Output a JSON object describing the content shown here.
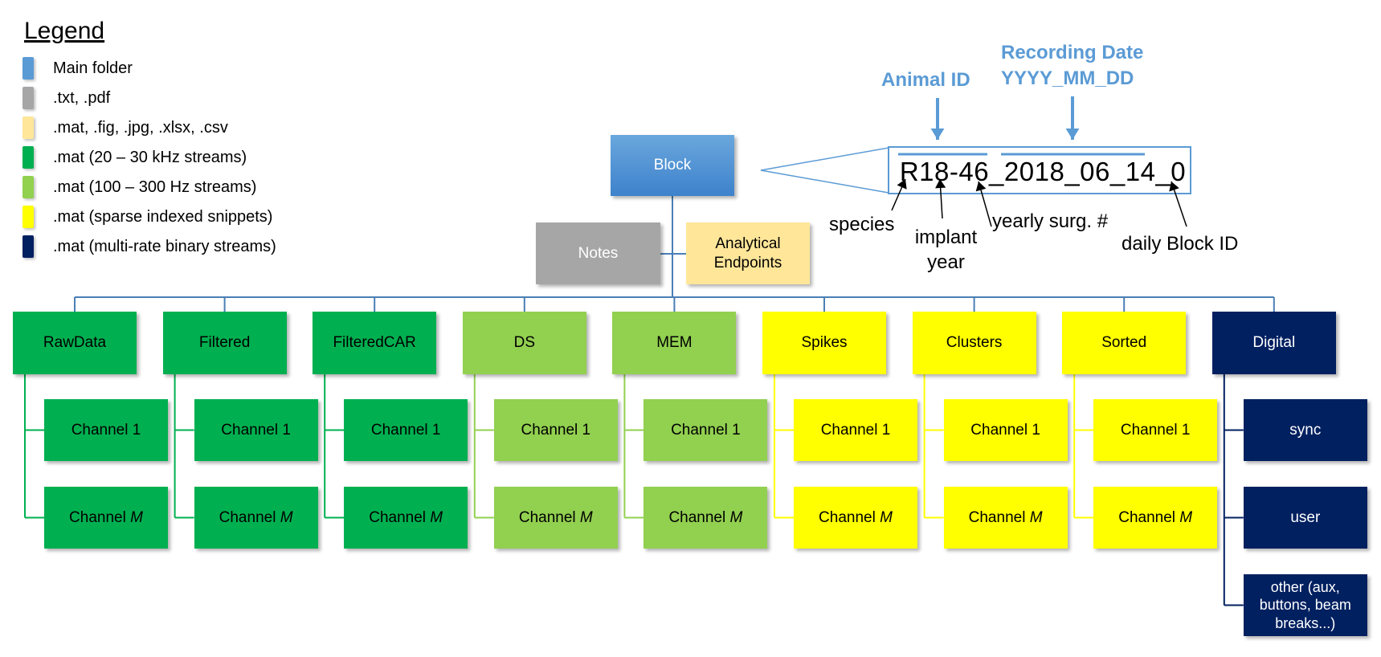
{
  "legend": {
    "title": "Legend",
    "items": [
      {
        "label": "Main folder",
        "color": "#5b9bd5"
      },
      {
        "label": ".txt, .pdf",
        "color": "#a6a6a6"
      },
      {
        "label": ".mat, .fig, .jpg, .xlsx, .csv",
        "color": "#ffe699"
      },
      {
        "label": ".mat (20 – 30 kHz streams)",
        "color": "#00b050"
      },
      {
        "label": ".mat (100 – 300 Hz streams)",
        "color": "#92d050"
      },
      {
        "label": ".mat (sparse indexed snippets)",
        "color": "#ffff00"
      },
      {
        "label": ".mat (multi-rate binary streams)",
        "color": "#002060"
      }
    ]
  },
  "root": {
    "label": "Block"
  },
  "notes": {
    "label": "Notes"
  },
  "endpoints": {
    "label": "Analytical Endpoints"
  },
  "folders": [
    {
      "label": "RawData",
      "kind": "dg",
      "children": [
        "Channel 1",
        "Channel M"
      ]
    },
    {
      "label": "Filtered",
      "kind": "dg",
      "children": [
        "Channel 1",
        "Channel M"
      ]
    },
    {
      "label": "FilteredCAR",
      "kind": "dg",
      "children": [
        "Channel 1",
        "Channel M"
      ]
    },
    {
      "label": "DS",
      "kind": "lg",
      "children": [
        "Channel 1",
        "Channel M"
      ]
    },
    {
      "label": "MEM",
      "kind": "lg",
      "children": [
        "Channel 1",
        "Channel M"
      ]
    },
    {
      "label": "Spikes",
      "kind": "y",
      "children": [
        "Channel 1",
        "Channel M"
      ]
    },
    {
      "label": "Clusters",
      "kind": "y",
      "children": [
        "Channel 1",
        "Channel M"
      ]
    },
    {
      "label": "Sorted",
      "kind": "y",
      "children": [
        "Channel 1",
        "Channel M"
      ]
    },
    {
      "label": "Digital",
      "kind": "nv",
      "children": [
        "sync",
        "user",
        "other (aux, buttons, beam breaks...)"
      ]
    }
  ],
  "naming": {
    "example": "R18-46_2018_06_14_0",
    "animal_id": "Animal ID",
    "recording_date": "Recording Date",
    "date_format": "YYYY_MM_DD",
    "species": "species",
    "implant_year": "implant year",
    "yearly_surg": "yearly surg. #",
    "daily_block": "daily Block ID"
  }
}
